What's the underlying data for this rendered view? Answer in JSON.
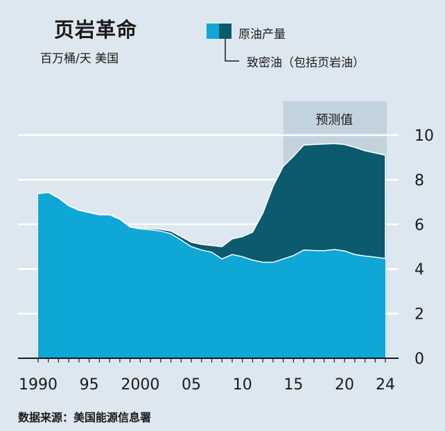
{
  "header": {
    "title": "页岩革命",
    "subtitle": "百万桶/天  美国"
  },
  "legend": {
    "item1": "原油产量",
    "item2": "致密油（包括页岩油）"
  },
  "forecast_label": "预测值",
  "source": "数据来源：美国能源信息署",
  "colors": {
    "total": "#0b5a6e",
    "non_tight": "#0fa7d6",
    "forecast_band": "#c3d3de",
    "background": "#dde7ef"
  },
  "chart_data": {
    "type": "area",
    "title": "页岩革命",
    "subtitle": "百万桶/天  美国",
    "xlim": [
      1990,
      2024
    ],
    "ylim": [
      0,
      10
    ],
    "ytick_values": [
      0,
      2,
      4,
      6,
      8,
      10
    ],
    "ytick_labels": [
      "0",
      "2",
      "4",
      "6",
      "8",
      "10"
    ],
    "xtick_values": [
      1990,
      1995,
      2000,
      2005,
      2010,
      2015,
      2020,
      2024
    ],
    "xtick_labels": [
      "1990",
      "95",
      "2000",
      "05",
      "10",
      "15",
      "20",
      "24"
    ],
    "forecast_start": 2014,
    "forecast_label": "预测值",
    "x": [
      1990,
      1991,
      1992,
      1993,
      1994,
      1995,
      1996,
      1997,
      1998,
      1999,
      2000,
      2001,
      2002,
      2003,
      2004,
      2005,
      2006,
      2007,
      2008,
      2009,
      2010,
      2011,
      2012,
      2013,
      2014,
      2015,
      2016,
      2017,
      2018,
      2019,
      2020,
      2021,
      2022,
      2023,
      2024
    ],
    "series": [
      {
        "name": "原油产量",
        "values": [
          7.4,
          7.45,
          7.2,
          6.85,
          6.65,
          6.55,
          6.45,
          6.45,
          6.25,
          5.9,
          5.85,
          5.82,
          5.78,
          5.7,
          5.45,
          5.2,
          5.1,
          5.05,
          5.0,
          5.35,
          5.45,
          5.65,
          6.5,
          7.7,
          8.6,
          9.05,
          9.55,
          9.58,
          9.6,
          9.62,
          9.58,
          9.45,
          9.3,
          9.2,
          9.1
        ]
      },
      {
        "name": "致密油（包括页岩油）",
        "values": [
          0.02,
          0.02,
          0.02,
          0.02,
          0.02,
          0.02,
          0.02,
          0.02,
          0.02,
          0.02,
          0.05,
          0.06,
          0.08,
          0.12,
          0.15,
          0.2,
          0.25,
          0.3,
          0.55,
          0.7,
          0.9,
          1.25,
          2.2,
          3.4,
          4.15,
          4.45,
          4.7,
          4.75,
          4.78,
          4.75,
          4.77,
          4.8,
          4.72,
          4.67,
          4.63
        ]
      }
    ]
  }
}
